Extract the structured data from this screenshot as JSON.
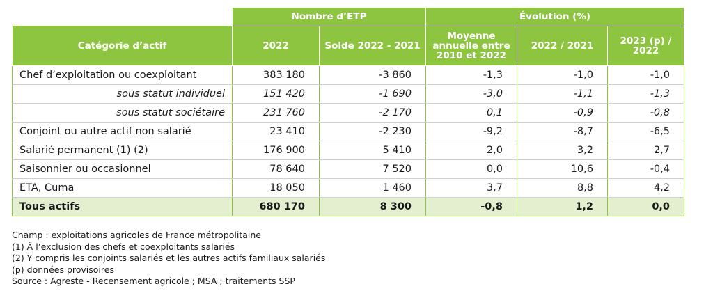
{
  "header": {
    "group_etp": "Nombre d’ETP",
    "group_evolution": "Évolution (%)",
    "columns": [
      "Catégorie d’actif",
      "2022",
      "Solde 2022 - 2021",
      "Moyenne annuelle entre 2010 et 2022",
      "2022 / 2021",
      "2023 (p) / 2022"
    ]
  },
  "rows": [
    {
      "label": "Chef d’exploitation ou coexploitant",
      "etp": "383 180",
      "solde": "-3 860",
      "moyenne": "-1,3",
      "evol_2022": "-1,0",
      "evol_2023": "-1,0"
    },
    {
      "label": "sous statut individuel",
      "etp": "151 420",
      "solde": "-1 690",
      "moyenne": "-3,0",
      "evol_2022": "-1,1",
      "evol_2023": "-1,3"
    },
    {
      "label": "sous statut sociétaire",
      "etp": "231 760",
      "solde": "-2 170",
      "moyenne": "0,1",
      "evol_2022": "-0,9",
      "evol_2023": "-0,8"
    },
    {
      "label": "Conjoint ou autre actif non salarié",
      "etp": "23 410",
      "solde": "-2 230",
      "moyenne": "-9,2",
      "evol_2022": "-8,7",
      "evol_2023": "-6,5"
    },
    {
      "label": "Salarié permanent (1) (2)",
      "etp": "176 900",
      "solde": "5 410",
      "moyenne": "2,0",
      "evol_2022": "3,2",
      "evol_2023": "2,7"
    },
    {
      "label": "Saisonnier ou occasionnel",
      "etp": "78 640",
      "solde": "7 520",
      "moyenne": "0,0",
      "evol_2022": "10,6",
      "evol_2023": "-0,4"
    },
    {
      "label": "ETA, Cuma",
      "etp": "18 050",
      "solde": "1 460",
      "moyenne": "3,7",
      "evol_2022": "8,8",
      "evol_2023": "4,2"
    }
  ],
  "total": {
    "label": "Tous actifs",
    "etp": "680 170",
    "solde": "8 300",
    "moyenne": "-0,8",
    "evol_2022": "1,2",
    "evol_2023": "0,0"
  },
  "notes": [
    "Champ : exploitations agricoles de France métropolitaine",
    "(1) À l’exclusion des chefs et coexploitants salariés",
    "(2) Y compris les conjoints salariés et les autres actifs familiaux salariés",
    "(p) données provisoires",
    "Source : Agreste - Recensement agricole ; MSA ; traitements SSP"
  ],
  "colors": {
    "header_green": "#8dc540",
    "total_row": "#e3efcf"
  }
}
